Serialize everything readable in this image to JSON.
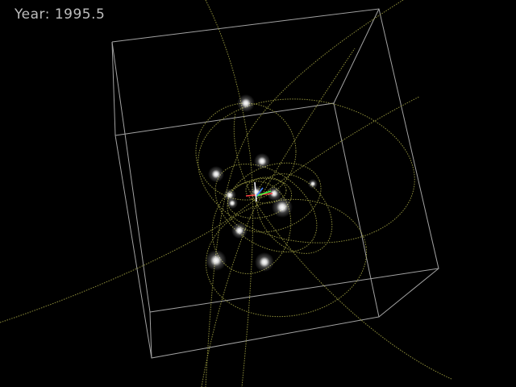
{
  "overlay": {
    "year_text": "Year: 1995.5"
  },
  "scene": {
    "background_color": "#000000",
    "box_color": "#d8d8d8",
    "orbit_color": "#a8a845",
    "star_color": "#ffffff",
    "axis_colors": {
      "x": "#ff4444",
      "y": "#44ff44",
      "z": "#4488ff"
    }
  }
}
